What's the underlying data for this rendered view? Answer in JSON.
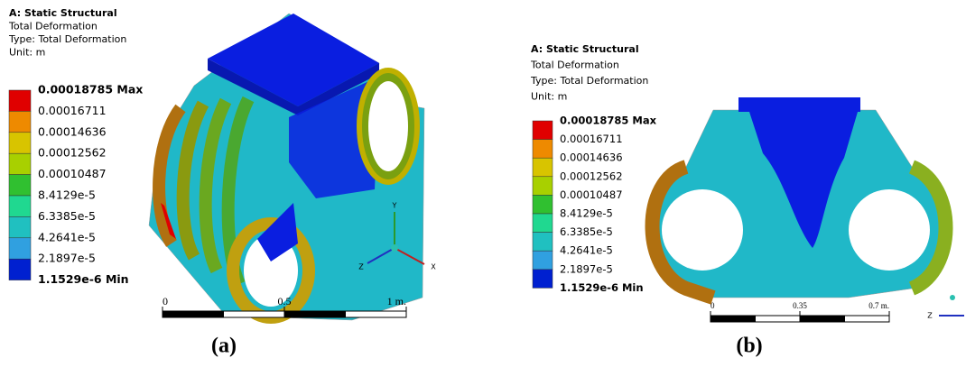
{
  "panels": [
    {
      "header": {
        "title": "A: Static Structural",
        "lines": [
          "Total Deformation",
          "Type: Total Deformation",
          "Unit: m"
        ]
      },
      "legend": [
        "0.00018785 Max",
        "0.00016711",
        "0.00014636",
        "0.00012562",
        "0.00010487",
        "8.4129e-5",
        "6.3385e-5",
        "4.2641e-5",
        "2.1897e-5",
        "1.1529e-6 Min"
      ],
      "scale_bar": [
        "0",
        "0.5",
        "1 m."
      ],
      "axes": [
        "Y",
        "Z",
        "X"
      ],
      "caption": "(a)"
    },
    {
      "header": {
        "title": "A: Static Structural",
        "lines": [
          "Total Deformation",
          "Type: Total Deformation",
          "Unit: m"
        ]
      },
      "legend": [
        "0.00018785 Max",
        "0.00016711",
        "0.00014636",
        "0.00012562",
        "0.00010487",
        "8.4129e-5",
        "6.3385e-5",
        "4.2641e-5",
        "2.1897e-5",
        "1.1529e-6 Min"
      ],
      "scale_bar": [
        "0",
        "0.35",
        "0.7 m."
      ],
      "axes": [
        "Z"
      ],
      "caption": "(b)"
    }
  ]
}
